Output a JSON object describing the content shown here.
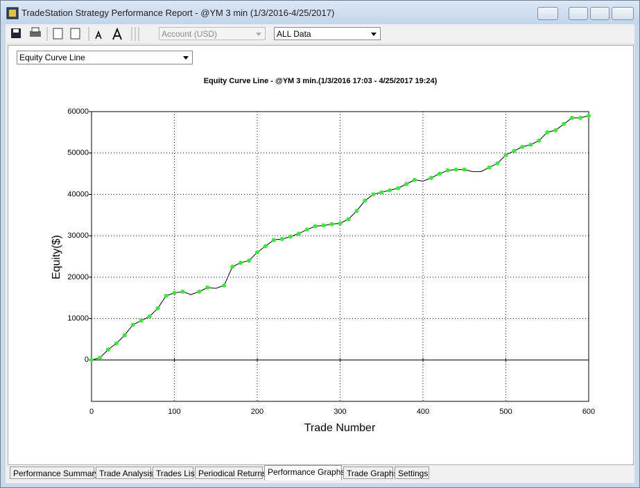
{
  "window": {
    "title": "TradeStation Strategy Performance Report - @YM 3 min (1/3/2016-4/25/2017)"
  },
  "toolbar": {
    "account": "Account (USD)",
    "range": "ALL Data"
  },
  "graph_selector": "Equity Curve Line",
  "tabs": [
    "Performance Summary",
    "Trade Analysis",
    "Trades List",
    "Periodical Returns",
    "Performance Graphs",
    "Trade Graphs",
    "Settings"
  ],
  "chart_data": {
    "type": "line",
    "title": "Equity Curve Line - @YM 3 min.(1/3/2016 17:03 - 4/25/2017 19:24)",
    "x_label": "Trade Number",
    "y_label": "Equity($)",
    "x": [
      0,
      10,
      20,
      30,
      40,
      50,
      60,
      70,
      80,
      90,
      100,
      110,
      120,
      130,
      140,
      150,
      160,
      170,
      180,
      190,
      200,
      210,
      220,
      230,
      240,
      250,
      260,
      270,
      280,
      290,
      300,
      310,
      320,
      330,
      340,
      350,
      360,
      370,
      380,
      390,
      400,
      410,
      420,
      430,
      440,
      450,
      460,
      470,
      480,
      490,
      500,
      510,
      520,
      530,
      540,
      550,
      560,
      570,
      580,
      590,
      600
    ],
    "series": [
      {
        "color": "#000000",
        "marker_color": "#33ee33",
        "values": [
          0,
          500,
          2500,
          4000,
          6000,
          8500,
          9500,
          10500,
          12500,
          15500,
          16200,
          16500,
          15800,
          16500,
          17500,
          17300,
          18000,
          22500,
          23500,
          24000,
          26000,
          27500,
          29000,
          29200,
          29800,
          30500,
          31500,
          32300,
          32500,
          32800,
          33000,
          34000,
          36000,
          38500,
          40000,
          40500,
          41000,
          41500,
          42500,
          43500,
          43200,
          44000,
          45000,
          45800,
          46000,
          46000,
          45500,
          45500,
          46500,
          47500,
          49500,
          50500,
          51500,
          52000,
          53000,
          55000,
          55500,
          57000,
          58500,
          58500,
          59000
        ]
      }
    ],
    "xlim": [
      0,
      600
    ],
    "ylim": [
      -10000,
      60000
    ],
    "xticks": [
      0,
      100,
      200,
      300,
      400,
      500,
      600
    ],
    "yticks": [
      0,
      10000,
      20000,
      30000,
      40000,
      50000,
      60000
    ],
    "grid": true
  }
}
